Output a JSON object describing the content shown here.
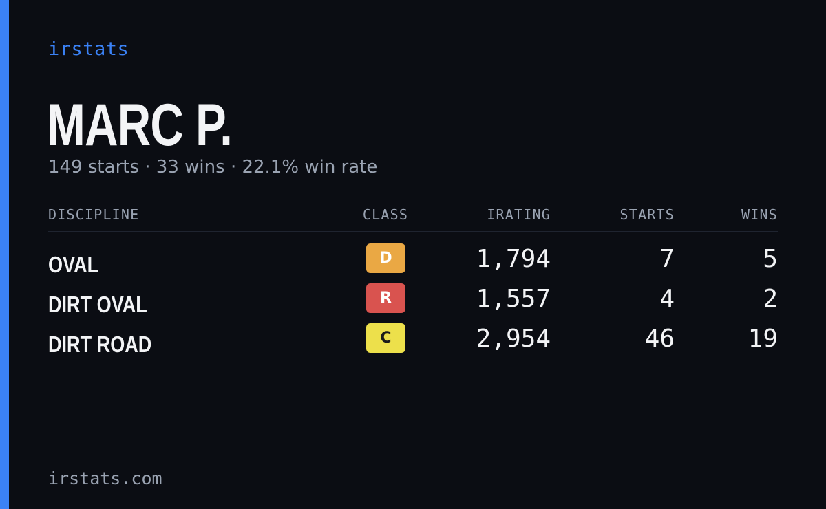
{
  "brand": "irstats",
  "driver": {
    "name": "MARC P."
  },
  "summary": {
    "starts": "149 starts",
    "wins": "33 wins",
    "win_rate": "22.1% win rate",
    "separator": "·"
  },
  "table": {
    "headers": {
      "discipline": "DISCIPLINE",
      "class": "CLASS",
      "irating": "IRATING",
      "starts": "STARTS",
      "wins": "WINS"
    },
    "rows": [
      {
        "discipline": "OVAL",
        "class": "D",
        "class_bg": "#eaa844",
        "class_fg": "#ffffff",
        "irating": "1,794",
        "starts": "7",
        "wins": "5"
      },
      {
        "discipline": "DIRT OVAL",
        "class": "R",
        "class_bg": "#d9534f",
        "class_fg": "#ffffff",
        "irating": "1,557",
        "starts": "4",
        "wins": "2"
      },
      {
        "discipline": "DIRT ROAD",
        "class": "C",
        "class_bg": "#ede04b",
        "class_fg": "#1b1b1b",
        "irating": "2,954",
        "starts": "46",
        "wins": "19"
      }
    ]
  },
  "footer": "irstats.com",
  "colors": {
    "background": "#0b0d13",
    "accent": "#3b82f6",
    "text": "#f3f4f6",
    "muted": "#9aa3b2"
  }
}
